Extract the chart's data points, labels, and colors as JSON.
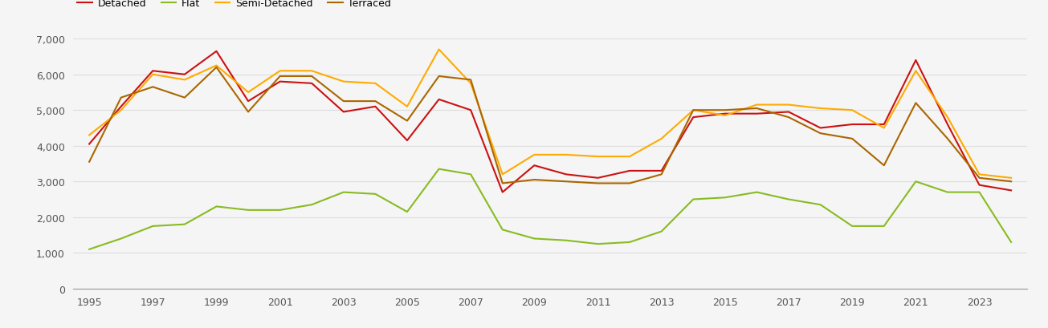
{
  "years": [
    1995,
    1996,
    1997,
    1998,
    1999,
    2000,
    2001,
    2002,
    2003,
    2004,
    2005,
    2006,
    2007,
    2008,
    2009,
    2010,
    2011,
    2012,
    2013,
    2014,
    2015,
    2016,
    2017,
    2018,
    2019,
    2020,
    2021,
    2022,
    2023,
    2024
  ],
  "detached": [
    4050,
    5100,
    6100,
    6000,
    6650,
    5250,
    5800,
    5750,
    4950,
    5100,
    4150,
    5300,
    5000,
    2700,
    3450,
    3200,
    3100,
    3300,
    3300,
    4800,
    4900,
    4900,
    4950,
    4500,
    4600,
    4600,
    6400,
    4600,
    2900,
    2750
  ],
  "flat": [
    1100,
    1400,
    1750,
    1800,
    2300,
    2200,
    2200,
    2350,
    2700,
    2650,
    2150,
    3350,
    3200,
    1650,
    1400,
    1350,
    1250,
    1300,
    1600,
    2500,
    2550,
    2700,
    2500,
    2350,
    1750,
    1750,
    3000,
    2700,
    2700,
    1300
  ],
  "semi_detached": [
    4300,
    5000,
    6000,
    5850,
    6250,
    5500,
    6100,
    6100,
    5800,
    5750,
    5100,
    6700,
    5750,
    3200,
    3750,
    3750,
    3700,
    3700,
    4200,
    5000,
    4850,
    5150,
    5150,
    5050,
    5000,
    4500,
    6100,
    4800,
    3200,
    3100
  ],
  "terraced": [
    3550,
    5350,
    5650,
    5350,
    6200,
    4950,
    5950,
    5950,
    5250,
    5250,
    4700,
    5950,
    5850,
    2950,
    3050,
    3000,
    2950,
    2950,
    3200,
    5000,
    5000,
    5050,
    4800,
    4350,
    4200,
    3450,
    5200,
    4200,
    3100,
    3000
  ],
  "line_colors": {
    "detached": "#cc1111",
    "flat": "#88bb22",
    "semi_detached": "#ffaa00",
    "terraced": "#aa6600"
  },
  "ylim": [
    0,
    7000
  ],
  "yticks": [
    0,
    1000,
    2000,
    3000,
    4000,
    5000,
    6000,
    7000
  ],
  "xtick_years": [
    1995,
    1997,
    1999,
    2001,
    2003,
    2005,
    2007,
    2009,
    2011,
    2013,
    2015,
    2017,
    2019,
    2021,
    2023
  ],
  "background_color": "#f5f5f5",
  "grid_color": "#dddddd",
  "line_width": 1.5,
  "tick_fontsize": 9,
  "legend_fontsize": 9
}
